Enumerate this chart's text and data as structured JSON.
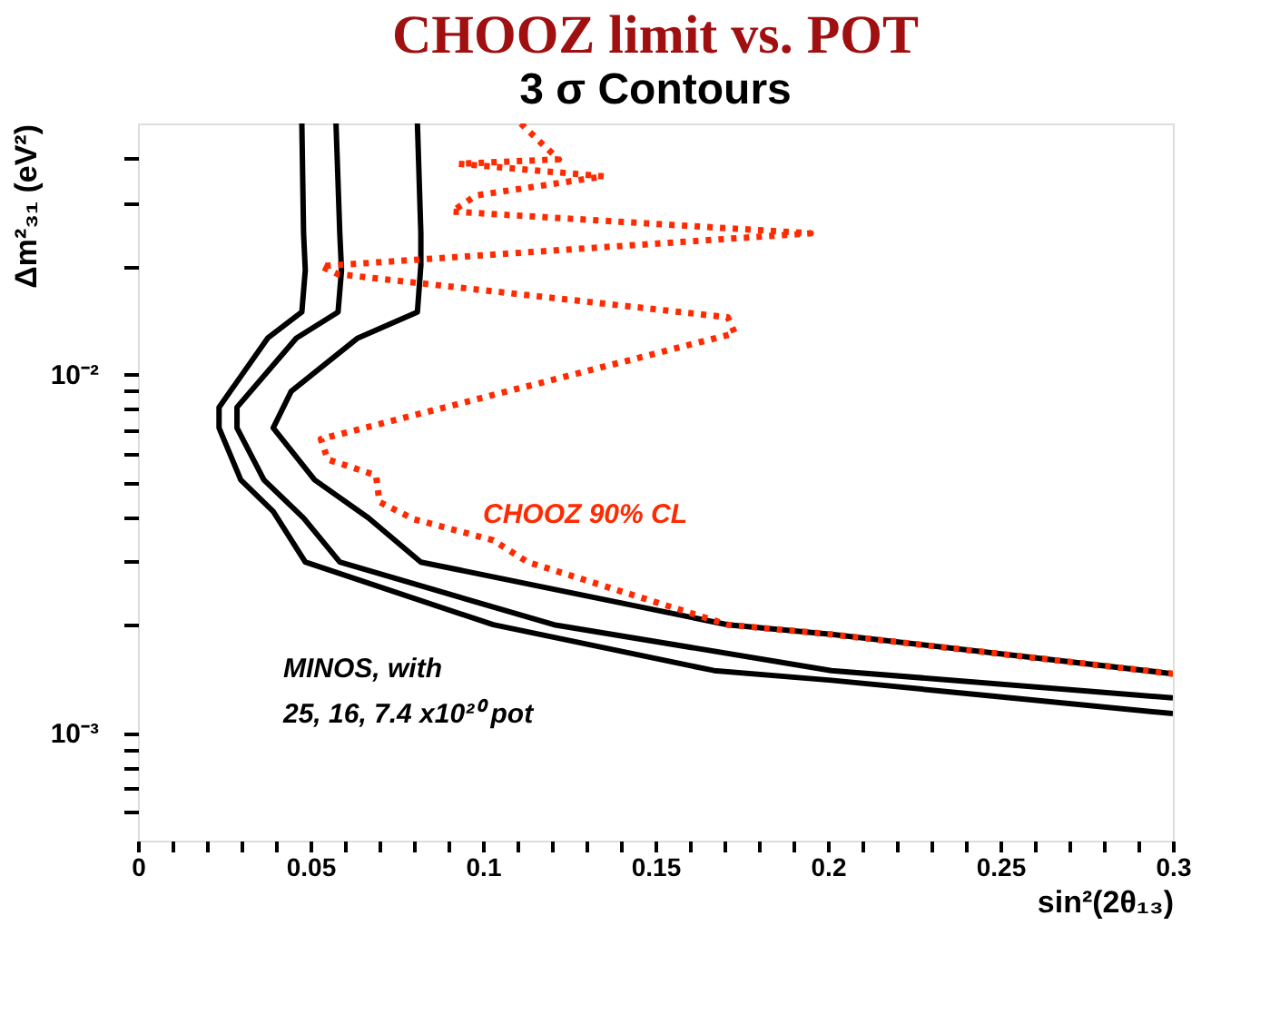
{
  "chart_data": {
    "type": "line",
    "title": "CHOOZ limit vs. POT",
    "subtitle": "3 σ Contours",
    "xlabel": "sin²(2θ₁₃)",
    "ylabel": "Δm²₃₁ (eV²)",
    "log": "y",
    "grid": false,
    "marker": "none",
    "xlim": [
      0,
      0.3
    ],
    "ylim": [
      0.0005,
      0.05
    ],
    "xticks": [
      0,
      {
        "value": 0.01,
        "label": null
      },
      {
        "value": 0.02,
        "label": null
      },
      {
        "value": 0.03,
        "label": null
      },
      {
        "value": 0.04,
        "label": null
      },
      0.05,
      {
        "value": 0.06,
        "label": null
      },
      {
        "value": 0.07,
        "label": null
      },
      {
        "value": 0.08,
        "label": null
      },
      {
        "value": 0.09,
        "label": null
      },
      0.1,
      {
        "value": 0.11,
        "label": null
      },
      {
        "value": 0.12,
        "label": null
      },
      {
        "value": 0.13,
        "label": null
      },
      {
        "value": 0.14,
        "label": null
      },
      0.15,
      {
        "value": 0.16,
        "label": null
      },
      {
        "value": 0.17,
        "label": null
      },
      {
        "value": 0.18,
        "label": null
      },
      {
        "value": 0.19,
        "label": null
      },
      0.2,
      {
        "value": 0.21,
        "label": null
      },
      {
        "value": 0.22,
        "label": null
      },
      {
        "value": 0.23,
        "label": null
      },
      {
        "value": 0.24,
        "label": null
      },
      0.25,
      {
        "value": 0.26,
        "label": null
      },
      {
        "value": 0.27,
        "label": null
      },
      {
        "value": 0.28,
        "label": null
      },
      {
        "value": 0.29,
        "label": null
      },
      0.3
    ],
    "yticks": [
      {
        "value": 0.0006,
        "label": null
      },
      {
        "value": 0.0007,
        "label": null
      },
      {
        "value": 0.0008,
        "label": null
      },
      {
        "value": 0.0009,
        "label": null
      },
      {
        "value": 0.001,
        "label": "10⁻³"
      },
      {
        "value": 0.002,
        "label": null
      },
      {
        "value": 0.003,
        "label": null
      },
      {
        "value": 0.004,
        "label": null
      },
      {
        "value": 0.005,
        "label": null
      },
      {
        "value": 0.006,
        "label": null
      },
      {
        "value": 0.007,
        "label": null
      },
      {
        "value": 0.008,
        "label": null
      },
      {
        "value": 0.009,
        "label": null
      },
      {
        "value": 0.01,
        "label": "10⁻²"
      },
      {
        "value": 0.02,
        "label": null
      },
      {
        "value": 0.03,
        "label": null
      },
      {
        "value": 0.04,
        "label": null
      }
    ],
    "series": [
      {
        "color": "#000000",
        "line_style": "solid",
        "x": [
          0.0475,
          0.048,
          0.0485,
          0.0475,
          0.0376,
          0.0235,
          0.0235,
          0.0298,
          0.0392,
          0.0485,
          0.103,
          0.167,
          0.201,
          0.3
        ],
        "values": [
          0.05,
          0.0247,
          0.0195,
          0.0149,
          0.0126,
          0.00808,
          0.00708,
          0.00507,
          0.00414,
          0.00299,
          0.002,
          0.00149,
          0.0014,
          0.00113
        ]
      },
      {
        "color": "#000000",
        "line_style": "solid",
        "x": [
          0.0574,
          0.0585,
          0.059,
          0.058,
          0.0459,
          0.0287,
          0.0287,
          0.0365,
          0.048,
          0.0585,
          0.1206,
          0.201,
          0.3
        ],
        "values": [
          0.05,
          0.0247,
          0.0195,
          0.0149,
          0.0126,
          0.00808,
          0.00708,
          0.00507,
          0.00397,
          0.00299,
          0.002,
          0.00149,
          0.00125
        ]
      },
      {
        "color": "#000000",
        "line_style": "solid",
        "x": [
          0.081,
          0.082,
          0.082,
          0.081,
          0.0637,
          0.0444,
          0.0392,
          0.0512,
          0.0668,
          0.082,
          0.171,
          0.201,
          0.3
        ],
        "values": [
          0.05,
          0.0247,
          0.0201,
          0.0149,
          0.0126,
          0.00895,
          0.00708,
          0.00507,
          0.00397,
          0.00299,
          0.002,
          0.00188,
          0.00146
        ]
      },
      {
        "color": "#ff2a00",
        "line_style": "dotted",
        "x": [
          0.111,
          0.117,
          0.122,
          0.093,
          0.135,
          0.098,
          0.091,
          0.195,
          0.053,
          0.058,
          0.171,
          0.173,
          0.053,
          0.055,
          0.069,
          0.07,
          0.08,
          0.103,
          0.113,
          0.171,
          0.201,
          0.3
        ],
        "values": [
          0.05,
          0.044,
          0.0397,
          0.0386,
          0.0356,
          0.0315,
          0.0284,
          0.0247,
          0.02,
          0.019,
          0.0144,
          0.013,
          0.00659,
          0.00578,
          0.00522,
          0.0044,
          0.00394,
          0.00344,
          0.00299,
          0.002,
          0.00188,
          0.00146
        ]
      }
    ],
    "annotations": [
      "CHOOZ 90% CL",
      "MINOS, with",
      "25, 16, 7.4 x10²⁰ pot"
    ]
  }
}
